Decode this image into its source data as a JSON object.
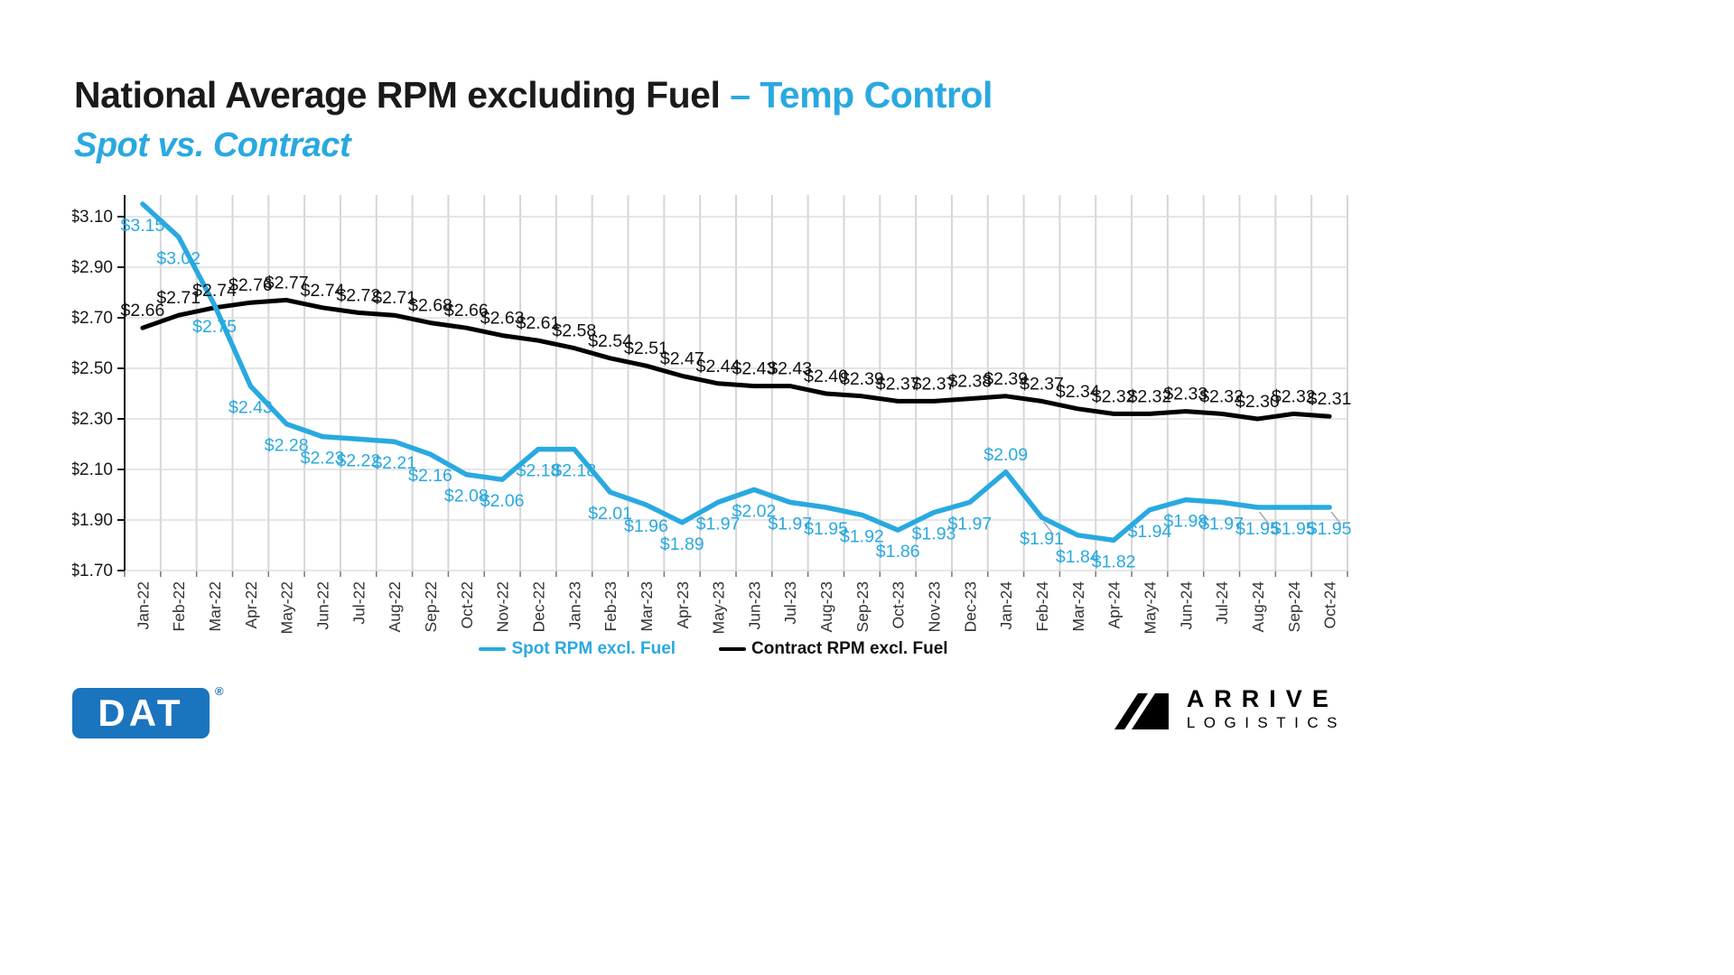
{
  "title": {
    "main": "National Average RPM excluding Fuel ",
    "highlight": "– Temp Control",
    "subtitle": "Spot vs. Contract"
  },
  "chart_data": {
    "type": "line",
    "categories": [
      "Jan-22",
      "Feb-22",
      "Mar-22",
      "Apr-22",
      "May-22",
      "Jun-22",
      "Jul-22",
      "Aug-22",
      "Sep-22",
      "Oct-22",
      "Nov-22",
      "Dec-22",
      "Jan-23",
      "Feb-23",
      "Mar-23",
      "Apr-23",
      "May-23",
      "Jun-23",
      "Jul-23",
      "Aug-23",
      "Sep-23",
      "Oct-23",
      "Nov-23",
      "Dec-23",
      "Jan-24",
      "Feb-24",
      "Mar-24",
      "Apr-24",
      "May-24",
      "Jun-24",
      "Jul-24",
      "Aug-24",
      "Sep-24",
      "Oct-24"
    ],
    "series": [
      {
        "name": "Spot RPM excl. Fuel",
        "color": "#29a9e0",
        "values": [
          3.15,
          3.02,
          2.75,
          2.43,
          2.28,
          2.23,
          2.22,
          2.21,
          2.16,
          2.08,
          2.06,
          2.18,
          2.18,
          2.01,
          1.96,
          1.89,
          1.97,
          2.02,
          1.97,
          1.95,
          1.92,
          1.86,
          1.93,
          1.97,
          2.09,
          1.91,
          1.84,
          1.82,
          1.94,
          1.98,
          1.97,
          1.95,
          1.95,
          1.95
        ]
      },
      {
        "name": "Contract RPM excl. Fuel",
        "color": "#000000",
        "values": [
          2.66,
          2.71,
          2.74,
          2.76,
          2.77,
          2.74,
          2.72,
          2.71,
          2.68,
          2.66,
          2.63,
          2.61,
          2.58,
          2.54,
          2.51,
          2.47,
          2.44,
          2.43,
          2.43,
          2.4,
          2.39,
          2.37,
          2.37,
          2.38,
          2.39,
          2.37,
          2.34,
          2.32,
          2.32,
          2.33,
          2.32,
          2.3,
          2.32,
          2.31
        ]
      }
    ],
    "title": "National Average RPM excluding Fuel – Temp Control",
    "subtitle": "Spot vs. Contract",
    "xlabel": "",
    "ylabel": "",
    "ylim": [
      1.7,
      3.18
    ],
    "yticks": [
      3.1,
      2.9,
      2.7,
      2.5,
      2.3,
      2.1,
      1.9,
      1.7
    ],
    "ytick_labels": [
      "$3.10",
      "$2.90",
      "$2.70",
      "$2.50",
      "$2.30",
      "$2.10",
      "$1.90",
      "$1.70"
    ],
    "grid": "both",
    "legend_position": "bottom",
    "data_label_format": "$0.00",
    "spot_label_above_indices": [
      24
    ],
    "callout_indices": [
      25,
      31,
      33
    ]
  },
  "legend": {
    "spot_label": "Spot RPM excl. Fuel",
    "contract_label": "Contract RPM excl. Fuel"
  },
  "footer": {
    "dat_logo_text": "DAT",
    "dat_registered": "®",
    "arrive_line1": "ARRIVE",
    "arrive_line2": "LOGISTICS"
  },
  "colors": {
    "accent_blue": "#29a9e0",
    "contract_black": "#000000",
    "dat_blue": "#1b74be",
    "grid_gray": "#d6d6d6",
    "text_dark": "#1a1a1a"
  }
}
